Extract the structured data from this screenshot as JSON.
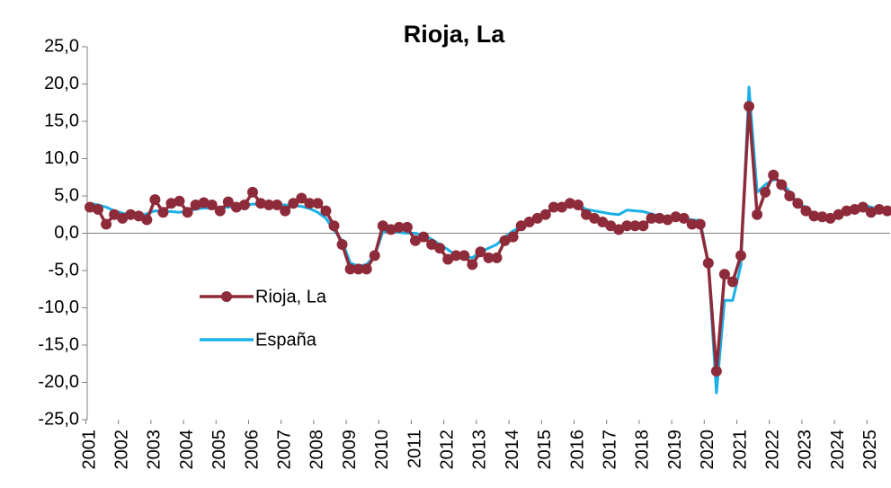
{
  "chart_data": {
    "type": "line",
    "title": "Rioja, La",
    "categories": [
      "2001",
      null,
      null,
      null,
      "2002",
      null,
      null,
      null,
      "2003",
      null,
      null,
      null,
      "2004",
      null,
      null,
      null,
      "2005",
      null,
      null,
      null,
      "2006",
      null,
      null,
      null,
      "2007",
      null,
      null,
      null,
      "2008",
      null,
      null,
      null,
      "2009",
      null,
      null,
      null,
      "2010",
      null,
      null,
      null,
      "2011",
      null,
      null,
      null,
      "2012",
      null,
      null,
      null,
      "2013",
      null,
      null,
      null,
      "2014",
      null,
      null,
      null,
      "2015",
      null,
      null,
      null,
      "2016",
      null,
      null,
      null,
      "2017",
      null,
      null,
      null,
      "2018",
      null,
      null,
      null,
      "2019",
      null,
      null,
      null,
      "2020",
      null,
      null,
      null,
      "2021",
      null,
      null,
      null,
      "2022",
      null,
      null,
      null,
      "2023",
      null,
      null,
      null,
      "2024",
      null,
      null,
      null,
      "2025",
      null,
      null
    ],
    "series": [
      {
        "name": "Rioja, La",
        "color": "#8e2b3a",
        "marker": true,
        "values": [
          3.5,
          3.2,
          1.2,
          2.5,
          2.0,
          2.5,
          2.3,
          1.8,
          4.5,
          2.8,
          4.0,
          4.3,
          2.8,
          3.8,
          4.1,
          3.8,
          3.0,
          4.2,
          3.5,
          3.8,
          5.5,
          4.0,
          3.8,
          3.8,
          3.0,
          4.0,
          4.7,
          4.0,
          4.0,
          3.0,
          1.0,
          -1.5,
          -4.8,
          -4.8,
          -4.8,
          -3.0,
          1.0,
          0.5,
          0.8,
          0.8,
          -1.0,
          -0.5,
          -1.5,
          -2.0,
          -3.5,
          -3.0,
          -3.0,
          -4.2,
          -2.5,
          -3.3,
          -3.3,
          -1.0,
          -0.5,
          1.0,
          1.5,
          2.0,
          2.5,
          3.5,
          3.5,
          4.0,
          3.8,
          2.5,
          2.0,
          1.5,
          1.0,
          0.5,
          1.0,
          1.0,
          1.0,
          2.0,
          2.0,
          1.8,
          2.2,
          2.0,
          1.2,
          1.2,
          -4.0,
          -18.5,
          -5.5,
          -6.5,
          -3.0,
          17.0,
          2.5,
          5.5,
          7.8,
          6.5,
          5.0,
          4.0,
          3.0,
          2.3,
          2.2,
          2.0,
          2.5,
          3.0,
          3.2,
          3.5,
          2.8,
          3.2,
          3.0
        ]
      },
      {
        "name": "España",
        "color": "#1ab0e6",
        "marker": false,
        "values": [
          4.0,
          3.8,
          3.5,
          3.0,
          2.7,
          2.4,
          2.3,
          2.6,
          3.0,
          2.9,
          2.9,
          2.8,
          3.0,
          3.2,
          3.4,
          3.3,
          3.4,
          3.5,
          3.6,
          3.7,
          3.9,
          3.9,
          3.8,
          3.8,
          3.8,
          3.7,
          3.6,
          3.3,
          2.8,
          2.0,
          0.4,
          -1.0,
          -4.0,
          -4.4,
          -4.2,
          -3.0,
          0.2,
          0.3,
          0.1,
          0.0,
          0.0,
          -0.3,
          -0.8,
          -1.5,
          -2.2,
          -3.0,
          -3.1,
          -3.3,
          -2.5,
          -2.0,
          -1.5,
          -0.5,
          0.3,
          0.9,
          1.5,
          2.0,
          2.8,
          3.3,
          3.8,
          4.0,
          3.8,
          3.2,
          3.0,
          2.8,
          2.6,
          2.5,
          3.1,
          3.0,
          2.9,
          2.6,
          2.3,
          2.2,
          2.2,
          2.0,
          1.8,
          1.7,
          -4.0,
          -21.4,
          -9.0,
          -9.0,
          -4.3,
          19.6,
          5.5,
          6.5,
          7.2,
          7.0,
          5.5,
          4.0,
          3.5,
          2.5,
          2.0,
          2.0,
          2.3,
          2.8,
          3.5,
          3.8,
          3.5,
          3.2,
          3.1
        ]
      }
    ],
    "ylim": [
      -25,
      25
    ],
    "yticks": [
      {
        "value": -25,
        "label": "-25,0"
      },
      {
        "value": -20,
        "label": "-20,0"
      },
      {
        "value": -15,
        "label": "-15,0"
      },
      {
        "value": -10,
        "label": "-10,0"
      },
      {
        "value": -5,
        "label": "-5,0"
      },
      {
        "value": 0,
        "label": "0,0"
      },
      {
        "value": 5,
        "label": "5,0"
      },
      {
        "value": 10,
        "label": "10,0"
      },
      {
        "value": 15,
        "label": "15,0"
      },
      {
        "value": 20,
        "label": "20,0"
      },
      {
        "value": 25,
        "label": "25,0"
      }
    ]
  }
}
